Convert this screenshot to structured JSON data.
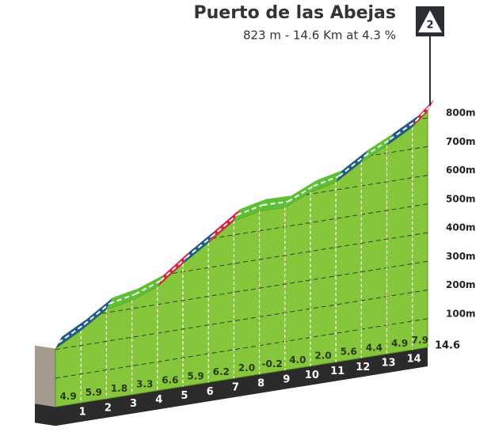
{
  "chart_data": {
    "type": "profile",
    "title": "Puerto de las Abejas",
    "subtitle": "823 m - 14.6 Km at 4.3 %",
    "category": "2",
    "x": [
      0,
      1,
      2,
      3,
      4,
      5,
      6,
      7,
      8,
      9,
      10,
      11,
      12,
      13,
      14,
      14.6
    ],
    "elevation": [
      203,
      252,
      311,
      329,
      362,
      428,
      487,
      549,
      569,
      567,
      607,
      627,
      683,
      727,
      776,
      823
    ],
    "gradients": [
      4.9,
      5.9,
      1.8,
      3.3,
      6.6,
      5.9,
      6.2,
      2.0,
      -0.2,
      4.0,
      2.0,
      5.6,
      4.4,
      4.9,
      7.9
    ],
    "value_labels": [
      "4.9",
      "5.9",
      "1.8",
      "3.3",
      "6.6",
      "5.9",
      "6.2",
      "2.0",
      "-0.2",
      "4.0",
      "2.0",
      "5.6",
      "4.4",
      "4.9",
      "7.9"
    ],
    "colors": [
      "#1f5b8a",
      "#1f5b8a",
      "#5cc035",
      "#5cc035",
      "#e21f3d",
      "#1f5b8a",
      "#e21f3d",
      "#5cc035",
      "#5cc035",
      "#5cc035",
      "#5cc035",
      "#1f5b8a",
      "#5cc035",
      "#1f5b8a",
      "#e21f3d"
    ],
    "ylim": [
      0,
      800
    ],
    "yticks": [
      {
        "value": 100,
        "label": "100m"
      },
      {
        "value": 200,
        "label": "200m"
      },
      {
        "value": 300,
        "label": "300m"
      },
      {
        "value": 400,
        "label": "400m"
      },
      {
        "value": 500,
        "label": "500m"
      },
      {
        "value": 600,
        "label": "600m"
      },
      {
        "value": 700,
        "label": "700m"
      },
      {
        "value": 800,
        "label": "800m"
      }
    ],
    "grid": true
  }
}
